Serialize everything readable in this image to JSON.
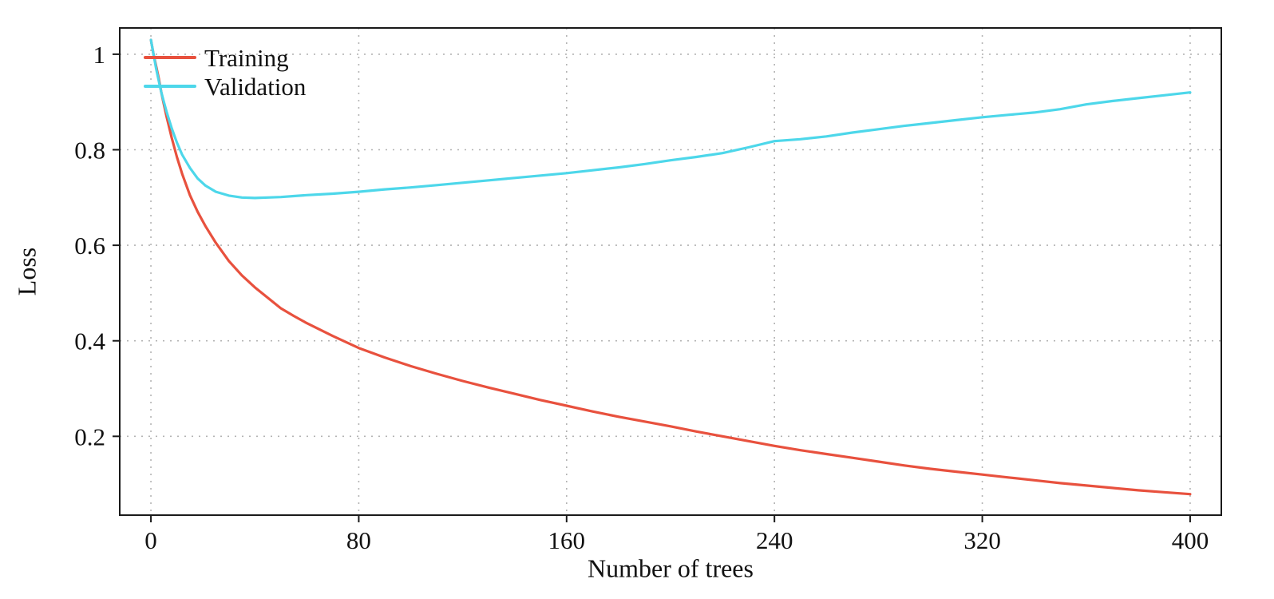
{
  "chart_data": {
    "type": "line",
    "title": "",
    "xlabel": "Number of trees",
    "ylabel": "Loss",
    "xlim": [
      -12,
      412
    ],
    "ylim": [
      0.035,
      1.055
    ],
    "grid": "dotted",
    "legend_position": "top-left",
    "colors": {
      "grid": "#b3b3b3",
      "axis": "#1a1a1a",
      "text": "#111111",
      "background": "#ffffff"
    },
    "xticks": {
      "values": [
        0,
        80,
        160,
        240,
        320,
        400
      ],
      "labels": [
        "0",
        "80",
        "160",
        "240",
        "320",
        "400"
      ]
    },
    "yticks": {
      "values": [
        1,
        0.8,
        0.6,
        0.4,
        0.2
      ],
      "labels": [
        "1",
        "0.8",
        "0.6",
        "0.4",
        "0.2"
      ]
    },
    "x": [
      0,
      1,
      2,
      3,
      4,
      5,
      6,
      8,
      10,
      12,
      15,
      18,
      21,
      25,
      30,
      35,
      40,
      45,
      50,
      55,
      60,
      70,
      80,
      90,
      100,
      110,
      120,
      130,
      140,
      150,
      160,
      170,
      180,
      190,
      200,
      210,
      220,
      230,
      240,
      250,
      260,
      270,
      280,
      290,
      300,
      310,
      320,
      330,
      340,
      350,
      360,
      370,
      380,
      390,
      400
    ],
    "series": [
      {
        "name": "Training",
        "color": "#e8513e",
        "y": [
          1.03,
          1.0,
          0.975,
          0.95,
          0.92,
          0.895,
          0.87,
          0.825,
          0.785,
          0.75,
          0.705,
          0.67,
          0.64,
          0.605,
          0.567,
          0.537,
          0.512,
          0.49,
          0.468,
          0.452,
          0.437,
          0.41,
          0.385,
          0.365,
          0.347,
          0.331,
          0.316,
          0.302,
          0.289,
          0.276,
          0.264,
          0.252,
          0.241,
          0.231,
          0.221,
          0.21,
          0.2,
          0.19,
          0.18,
          0.171,
          0.163,
          0.155,
          0.147,
          0.139,
          0.132,
          0.126,
          0.12,
          0.114,
          0.108,
          0.102,
          0.097,
          0.092,
          0.087,
          0.083,
          0.079
        ]
      },
      {
        "name": "Validation",
        "color": "#4dd7ea",
        "y": [
          1.03,
          1.0,
          0.97,
          0.945,
          0.92,
          0.9,
          0.88,
          0.845,
          0.815,
          0.79,
          0.762,
          0.74,
          0.725,
          0.712,
          0.704,
          0.7,
          0.699,
          0.7,
          0.701,
          0.703,
          0.705,
          0.708,
          0.712,
          0.717,
          0.721,
          0.726,
          0.731,
          0.736,
          0.741,
          0.746,
          0.751,
          0.757,
          0.763,
          0.77,
          0.778,
          0.785,
          0.793,
          0.805,
          0.818,
          0.822,
          0.828,
          0.836,
          0.843,
          0.85,
          0.856,
          0.862,
          0.868,
          0.873,
          0.878,
          0.885,
          0.895,
          0.902,
          0.908,
          0.914,
          0.92
        ]
      }
    ]
  }
}
